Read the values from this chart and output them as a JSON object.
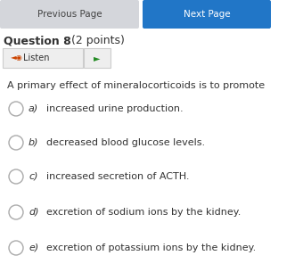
{
  "background_color": "#ffffff",
  "prev_btn_text": "Previous Page",
  "prev_btn_bg": "#d4d6db",
  "prev_btn_fg": "#444444",
  "next_btn_text": "Next Page",
  "next_btn_bg": "#2176c7",
  "next_btn_fg": "#ffffff",
  "question_label": "Question 8",
  "question_points": " (2 points)",
  "listen_label": "Listen",
  "speaker_icon": "◄◉",
  "play_icon": "►",
  "question_text": "A primary effect of mineralocorticoids is to promote",
  "options": [
    {
      "letter": "a)",
      "text": "increased urine production."
    },
    {
      "letter": "b)",
      "text": "decreased blood glucose levels."
    },
    {
      "letter": "c)",
      "text": "increased secretion of ACTH."
    },
    {
      "letter": "d)",
      "text": "excretion of sodium ions by the kidney."
    },
    {
      "letter": "e)",
      "text": "excretion of potassium ions by the kidney."
    }
  ],
  "text_color": "#333333",
  "circle_color": "#aaaaaa",
  "border_color": "#cccccc"
}
